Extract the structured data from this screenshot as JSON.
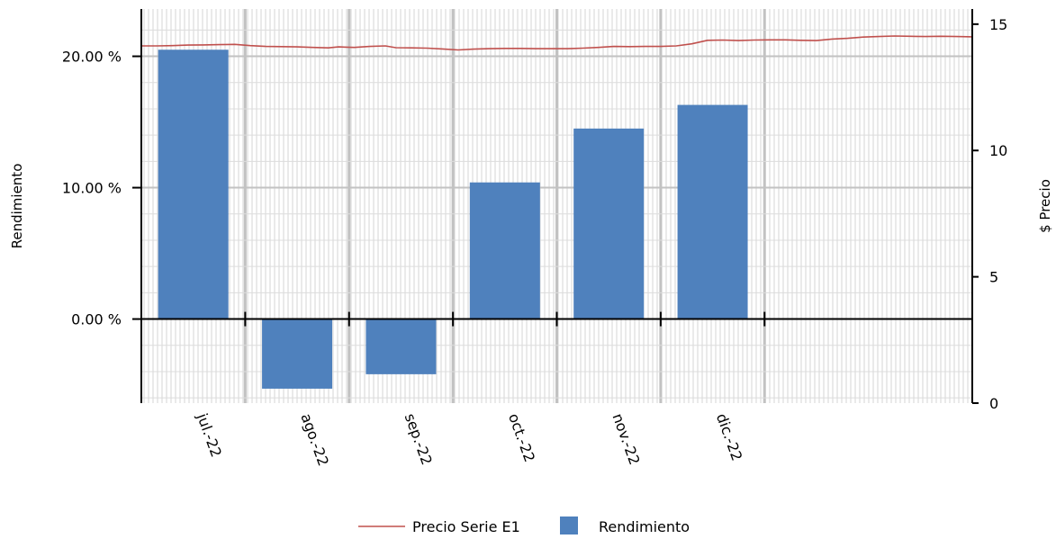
{
  "chart_data": {
    "type": "bar",
    "categories": [
      "jul.-22",
      "ago.-22",
      "sep.-22",
      "oct.-22",
      "nov.-22",
      "dic.-22"
    ],
    "series": [
      {
        "name": "Rendimiento",
        "type": "bar",
        "axis": "left",
        "color": "#4f81bd",
        "values": [
          20.5,
          -5.3,
          -4.2,
          10.4,
          14.5,
          16.3
        ]
      },
      {
        "name": "Precio Serie E1",
        "type": "line",
        "axis": "right",
        "color": "#c0504d",
        "points": [
          [
            0.0,
            14.14
          ],
          [
            0.15,
            14.14
          ],
          [
            0.3,
            14.15
          ],
          [
            0.45,
            14.17
          ],
          [
            0.6,
            14.18
          ],
          [
            0.75,
            14.19
          ],
          [
            0.9,
            14.2
          ],
          [
            1.05,
            14.15
          ],
          [
            1.2,
            14.12
          ],
          [
            1.35,
            14.11
          ],
          [
            1.5,
            14.1
          ],
          [
            1.65,
            14.08
          ],
          [
            1.8,
            14.06
          ],
          [
            1.9,
            14.1
          ],
          [
            2.05,
            14.08
          ],
          [
            2.2,
            14.12
          ],
          [
            2.35,
            14.14
          ],
          [
            2.45,
            14.07
          ],
          [
            2.6,
            14.06
          ],
          [
            2.75,
            14.05
          ],
          [
            2.9,
            14.02
          ],
          [
            3.05,
            13.98
          ],
          [
            3.2,
            14.01
          ],
          [
            3.35,
            14.03
          ],
          [
            3.5,
            14.04
          ],
          [
            3.65,
            14.04
          ],
          [
            3.8,
            14.03
          ],
          [
            3.95,
            14.03
          ],
          [
            4.1,
            14.03
          ],
          [
            4.25,
            14.05
          ],
          [
            4.4,
            14.08
          ],
          [
            4.55,
            14.12
          ],
          [
            4.7,
            14.11
          ],
          [
            4.85,
            14.12
          ],
          [
            5.0,
            14.12
          ],
          [
            5.15,
            14.14
          ],
          [
            5.3,
            14.22
          ],
          [
            5.45,
            14.36
          ],
          [
            5.6,
            14.37
          ],
          [
            5.75,
            14.35
          ],
          [
            5.9,
            14.37
          ],
          [
            6.05,
            14.38
          ],
          [
            6.2,
            14.38
          ],
          [
            6.35,
            14.36
          ],
          [
            6.5,
            14.35
          ],
          [
            6.65,
            14.41
          ],
          [
            6.8,
            14.44
          ],
          [
            6.95,
            14.49
          ],
          [
            7.1,
            14.51
          ],
          [
            7.25,
            14.53
          ],
          [
            7.4,
            14.52
          ],
          [
            7.55,
            14.51
          ],
          [
            7.7,
            14.52
          ],
          [
            7.85,
            14.51
          ],
          [
            8.0,
            14.5
          ]
        ]
      }
    ],
    "y_left": {
      "label": "Rendimiento",
      "ylim": [
        -6.4,
        23.6
      ],
      "ticks": [
        0,
        10,
        20
      ],
      "tick_labels": [
        "0.00 %",
        "10.00 %",
        "20.00 %"
      ]
    },
    "y_right": {
      "label": "$ Precio",
      "ylim": [
        0,
        15.6
      ],
      "ticks": [
        0,
        5,
        10,
        15
      ],
      "tick_labels": [
        "0",
        "5",
        "10",
        "15"
      ]
    },
    "x_range": [
      0,
      8
    ],
    "x_divider_positions": [
      1,
      2,
      3,
      4,
      5,
      6
    ],
    "grid": true,
    "legend": {
      "position": "bottom",
      "entries": [
        "Precio Serie E1",
        "Rendimiento"
      ]
    }
  }
}
